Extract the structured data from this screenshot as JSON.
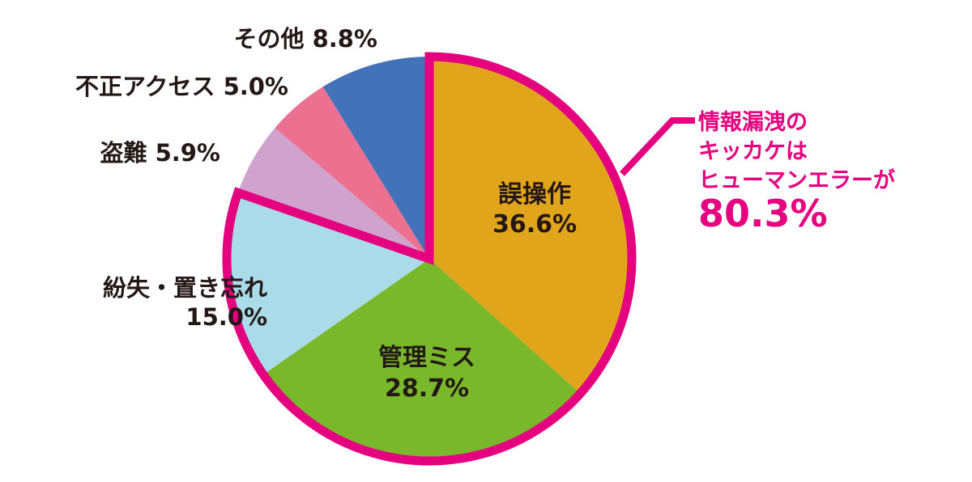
{
  "chart_data": {
    "type": "pie",
    "slices": [
      {
        "label": "誤操作",
        "value": 36.6,
        "value_text": "36.6%",
        "color": "#e0a51b"
      },
      {
        "label": "管理ミス",
        "value": 28.7,
        "value_text": "28.7%",
        "color": "#78b82a"
      },
      {
        "label": "紛失・置き忘れ",
        "value": 15.0,
        "value_text": "15.0%",
        "color": "#a9dbe9"
      },
      {
        "label": "盗難",
        "value": 5.9,
        "value_text": "5.9%",
        "color": "#cfa3cd"
      },
      {
        "label": "不正アクセス",
        "value": 5.0,
        "value_text": "5.0%",
        "color": "#ec7191"
      },
      {
        "label": "その他",
        "value": 8.8,
        "value_text": "8.8%",
        "color": "#4472b8"
      }
    ],
    "highlight": {
      "slices": [
        "誤操作",
        "管理ミス",
        "紛失・置き忘れ"
      ],
      "color": "#e4007f",
      "callout_lines": [
        "情報漏洩の",
        "キッカケは",
        "ヒューマンエラーが"
      ],
      "callout_value": "80.3%"
    }
  }
}
